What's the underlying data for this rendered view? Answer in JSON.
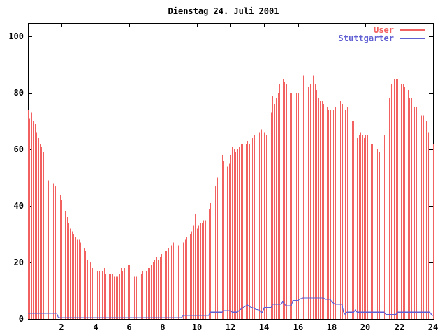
{
  "title": "Dienstag 24. Juli 2001",
  "colors": {
    "background": "#ffffff",
    "foreground": "#000000",
    "user_series": "#f2605f",
    "stuttgarter_series": "#5f5fd3"
  },
  "legend": {
    "position": "top-right",
    "entries": [
      {
        "label": "User",
        "color": "#f2605f"
      },
      {
        "label": "Stuttgarter",
        "color": "#5f5fd3"
      }
    ]
  },
  "axes": {
    "x_tick_labels": [
      "2",
      "4",
      "6",
      "8",
      "10",
      "12",
      "14",
      "16",
      "18",
      "20",
      "22",
      "24"
    ],
    "x_tick_values": [
      2,
      4,
      6,
      8,
      10,
      12,
      14,
      16,
      18,
      20,
      22,
      24
    ],
    "y_tick_labels": [
      "0",
      "20",
      "40",
      "60",
      "80",
      "100"
    ],
    "y_tick_values": [
      0,
      20,
      40,
      60,
      80,
      100
    ]
  },
  "chart_data": {
    "type": "bar",
    "title": "Dienstag 24. Juli 2001",
    "xlabel": "",
    "ylabel": "",
    "xlim": [
      0,
      24
    ],
    "ylim": [
      0,
      104.7
    ],
    "x_unit": "hour-of-day",
    "grid": false,
    "legend_position": "top-right",
    "gaps_at_hours": [
      9.0,
      15.0,
      21.0
    ],
    "series": [
      {
        "name": "User",
        "type": "impulses",
        "color": "#f2605f",
        "x_start": 0.0,
        "x_step": 0.1,
        "values": [
          74,
          71,
          73,
          70,
          69,
          66,
          64,
          62,
          61,
          59,
          52,
          50,
          49,
          50,
          51,
          48,
          47,
          46,
          45,
          44,
          42,
          40,
          38,
          36,
          34,
          32,
          31,
          30,
          29,
          28,
          28,
          27,
          26,
          25,
          24,
          21,
          20,
          20,
          18,
          18,
          17,
          17,
          17,
          17,
          17,
          18,
          16,
          16,
          16,
          16,
          16,
          15,
          15,
          15,
          16,
          18,
          17,
          18,
          19,
          19,
          19,
          16,
          15,
          15,
          15,
          16,
          16,
          16,
          17,
          17,
          17,
          18,
          18,
          19,
          20,
          21,
          22,
          21,
          22,
          23,
          23,
          24,
          24,
          25,
          25,
          26,
          27,
          26,
          27,
          26,
          0,
          25,
          27,
          28,
          29,
          30,
          30,
          31,
          33,
          37,
          32,
          33,
          34,
          34,
          35,
          35,
          37,
          39,
          41,
          46,
          48,
          47,
          50,
          53,
          55,
          58,
          56,
          55,
          54,
          55,
          58,
          61,
          60,
          59,
          60,
          61,
          62,
          62,
          61,
          62,
          63,
          62,
          63,
          64,
          65,
          65,
          66,
          66,
          67,
          67,
          66,
          65,
          64,
          68,
          73,
          79,
          76,
          78,
          80,
          83,
          0,
          85,
          84,
          83,
          81,
          80,
          80,
          79,
          79,
          80,
          80,
          83,
          85,
          86,
          84,
          83,
          82,
          83,
          84,
          86,
          83,
          81,
          78,
          77,
          77,
          76,
          75,
          75,
          74,
          74,
          72,
          74,
          75,
          76,
          76,
          77,
          76,
          75,
          74,
          75,
          74,
          71,
          70,
          70,
          67,
          64,
          65,
          66,
          65,
          64,
          65,
          65,
          62,
          62,
          62,
          59,
          57,
          60,
          59,
          57,
          0,
          65,
          67,
          69,
          78,
          83,
          84,
          85,
          85,
          85,
          87,
          83,
          83,
          82,
          81,
          81,
          78,
          78,
          76,
          75,
          75,
          73,
          74,
          72,
          72,
          71,
          70,
          66,
          65,
          63,
          62
        ]
      },
      {
        "name": "Stuttgarter",
        "type": "line",
        "color": "#5f5fd3",
        "points": [
          [
            0.0,
            2.0
          ],
          [
            1.7,
            2.0
          ],
          [
            1.8,
            0.5
          ],
          [
            9.1,
            0.5
          ],
          [
            9.2,
            1.2
          ],
          [
            10.7,
            1.2
          ],
          [
            10.8,
            2.4
          ],
          [
            11.5,
            2.4
          ],
          [
            11.6,
            3.0
          ],
          [
            12.0,
            3.0
          ],
          [
            12.1,
            2.4
          ],
          [
            12.4,
            2.4
          ],
          [
            12.6,
            3.4
          ],
          [
            12.8,
            4.2
          ],
          [
            13.0,
            5.0
          ],
          [
            13.1,
            4.4
          ],
          [
            13.3,
            4.0
          ],
          [
            13.5,
            3.4
          ],
          [
            13.7,
            3.2
          ],
          [
            13.8,
            2.4
          ],
          [
            13.9,
            2.4
          ],
          [
            14.0,
            4.0
          ],
          [
            14.4,
            4.0
          ],
          [
            14.5,
            5.2
          ],
          [
            15.0,
            5.2
          ],
          [
            15.1,
            6.1
          ],
          [
            15.2,
            5.2
          ],
          [
            15.3,
            4.7
          ],
          [
            15.6,
            4.7
          ],
          [
            15.7,
            6.5
          ],
          [
            16.0,
            6.5
          ],
          [
            16.1,
            7.0
          ],
          [
            16.3,
            7.4
          ],
          [
            17.5,
            7.4
          ],
          [
            17.6,
            7.0
          ],
          [
            17.9,
            7.0
          ],
          [
            18.0,
            6.1
          ],
          [
            18.2,
            5.2
          ],
          [
            18.6,
            5.2
          ],
          [
            18.7,
            2.4
          ],
          [
            18.8,
            1.6
          ],
          [
            18.9,
            2.4
          ],
          [
            19.3,
            2.4
          ],
          [
            19.4,
            3.2
          ],
          [
            19.5,
            2.4
          ],
          [
            21.1,
            2.4
          ],
          [
            21.2,
            1.6
          ],
          [
            21.8,
            1.6
          ],
          [
            21.9,
            2.4
          ],
          [
            23.8,
            2.4
          ],
          [
            23.9,
            1.6
          ],
          [
            24.0,
            1.2
          ]
        ]
      }
    ]
  }
}
